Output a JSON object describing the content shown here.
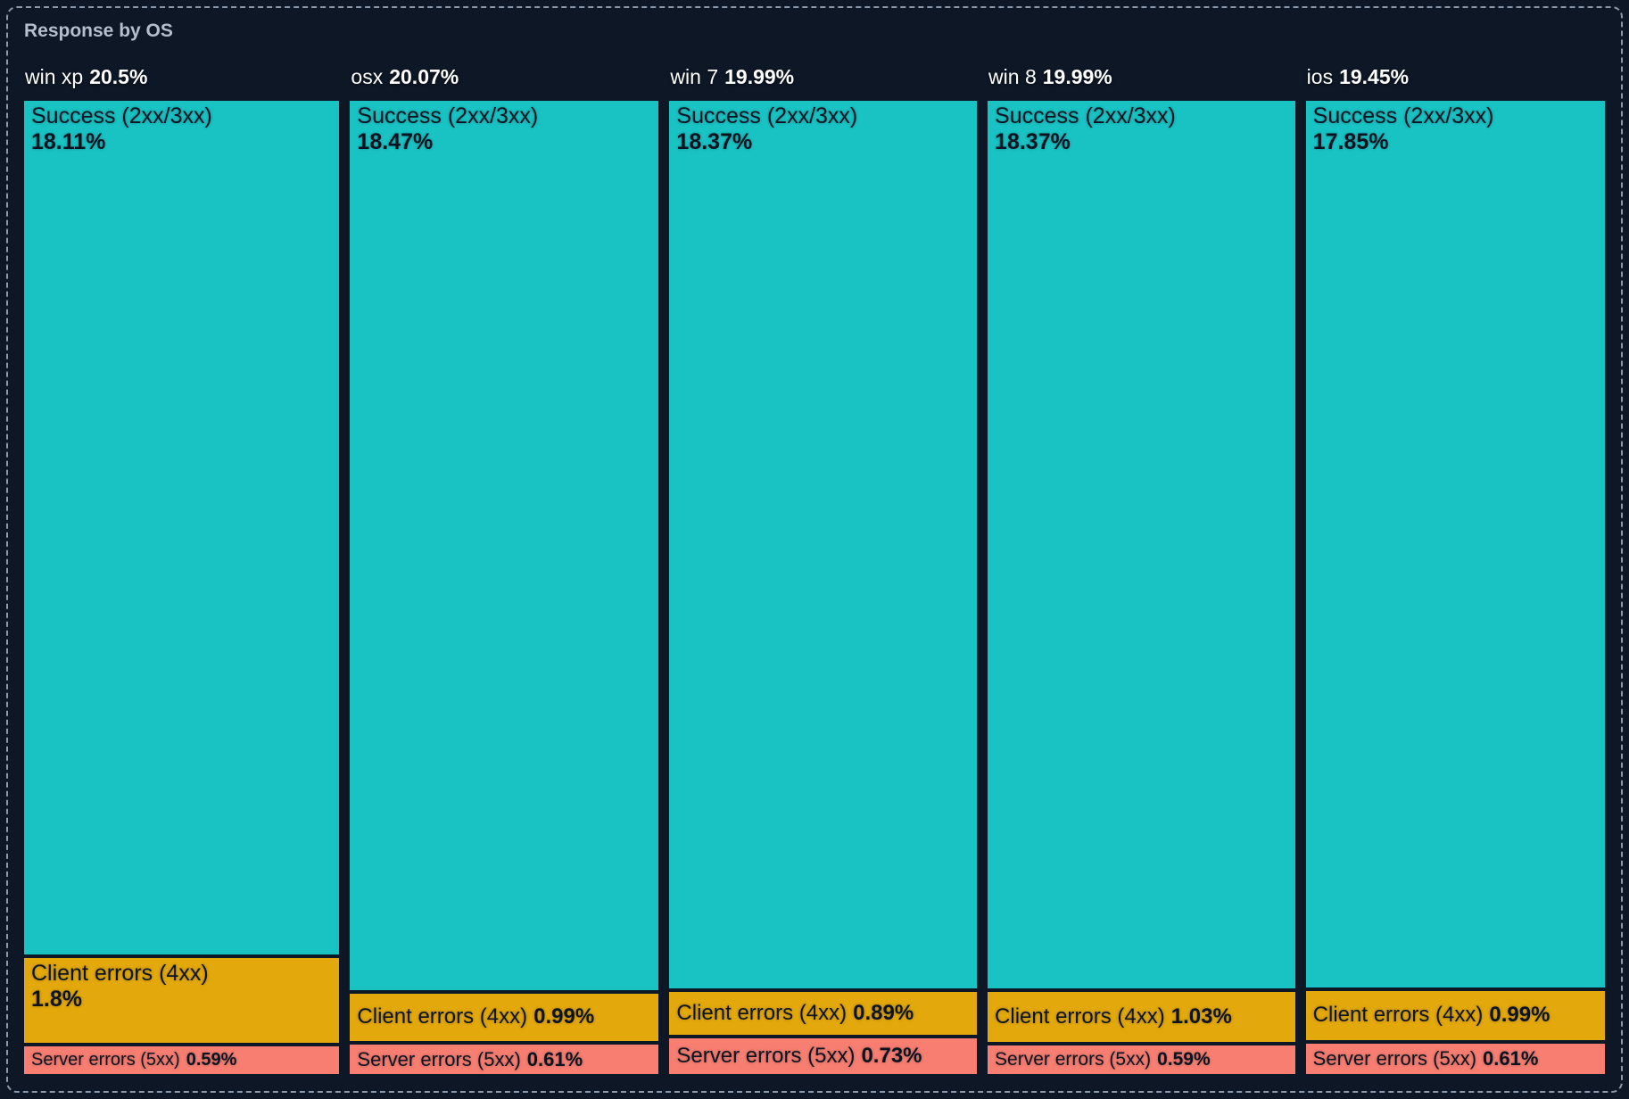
{
  "title": "Response by OS",
  "colors": {
    "background": "#0D1726",
    "frame_border": "#8B99AC",
    "title_text": "#B5BFCC",
    "header_text": "#FFFFFF",
    "block_text": "#0C1320",
    "teal": "#19C3C4",
    "amber": "#E3A80B",
    "salmon": "#F77E71"
  },
  "chart_data": {
    "type": "treemap",
    "title": "Response by OS",
    "unit": "%",
    "orientation": "columns-by-os, vertical segments by response class",
    "legend": [
      "Success (2xx/3xx)",
      "Client errors (4xx)",
      "Server errors (5xx)"
    ],
    "columns": [
      {
        "os": "win xp",
        "total_label": "20.5%",
        "total_value": 20.5,
        "segments": [
          {
            "label": "Success (2xx/3xx)",
            "pct_label": "18.11%",
            "value": 18.11,
            "color_key": "teal"
          },
          {
            "label": "Client errors (4xx)",
            "pct_label": "1.8%",
            "value": 1.8,
            "color_key": "amber"
          },
          {
            "label": "Server errors (5xx)",
            "pct_label": "0.59%",
            "value": 0.59,
            "color_key": "salmon"
          }
        ]
      },
      {
        "os": "osx",
        "total_label": "20.07%",
        "total_value": 20.07,
        "segments": [
          {
            "label": "Success (2xx/3xx)",
            "pct_label": "18.47%",
            "value": 18.47,
            "color_key": "teal"
          },
          {
            "label": "Client errors (4xx)",
            "pct_label": "0.99%",
            "value": 0.99,
            "color_key": "amber"
          },
          {
            "label": "Server errors (5xx)",
            "pct_label": "0.61%",
            "value": 0.61,
            "color_key": "salmon"
          }
        ]
      },
      {
        "os": "win 7",
        "total_label": "19.99%",
        "total_value": 19.99,
        "segments": [
          {
            "label": "Success (2xx/3xx)",
            "pct_label": "18.37%",
            "value": 18.37,
            "color_key": "teal"
          },
          {
            "label": "Client errors (4xx)",
            "pct_label": "0.89%",
            "value": 0.89,
            "color_key": "amber"
          },
          {
            "label": "Server errors (5xx)",
            "pct_label": "0.73%",
            "value": 0.73,
            "color_key": "salmon"
          }
        ]
      },
      {
        "os": "win 8",
        "total_label": "19.99%",
        "total_value": 19.99,
        "segments": [
          {
            "label": "Success (2xx/3xx)",
            "pct_label": "18.37%",
            "value": 18.37,
            "color_key": "teal"
          },
          {
            "label": "Client errors (4xx)",
            "pct_label": "1.03%",
            "value": 1.03,
            "color_key": "amber"
          },
          {
            "label": "Server errors (5xx)",
            "pct_label": "0.59%",
            "value": 0.59,
            "color_key": "salmon"
          }
        ]
      },
      {
        "os": "ios",
        "total_label": "19.45%",
        "total_value": 19.45,
        "segments": [
          {
            "label": "Success (2xx/3xx)",
            "pct_label": "17.85%",
            "value": 17.85,
            "color_key": "teal"
          },
          {
            "label": "Client errors (4xx)",
            "pct_label": "0.99%",
            "value": 0.99,
            "color_key": "amber"
          },
          {
            "label": "Server errors (5xx)",
            "pct_label": "0.61%",
            "value": 0.61,
            "color_key": "salmon"
          }
        ]
      }
    ]
  }
}
